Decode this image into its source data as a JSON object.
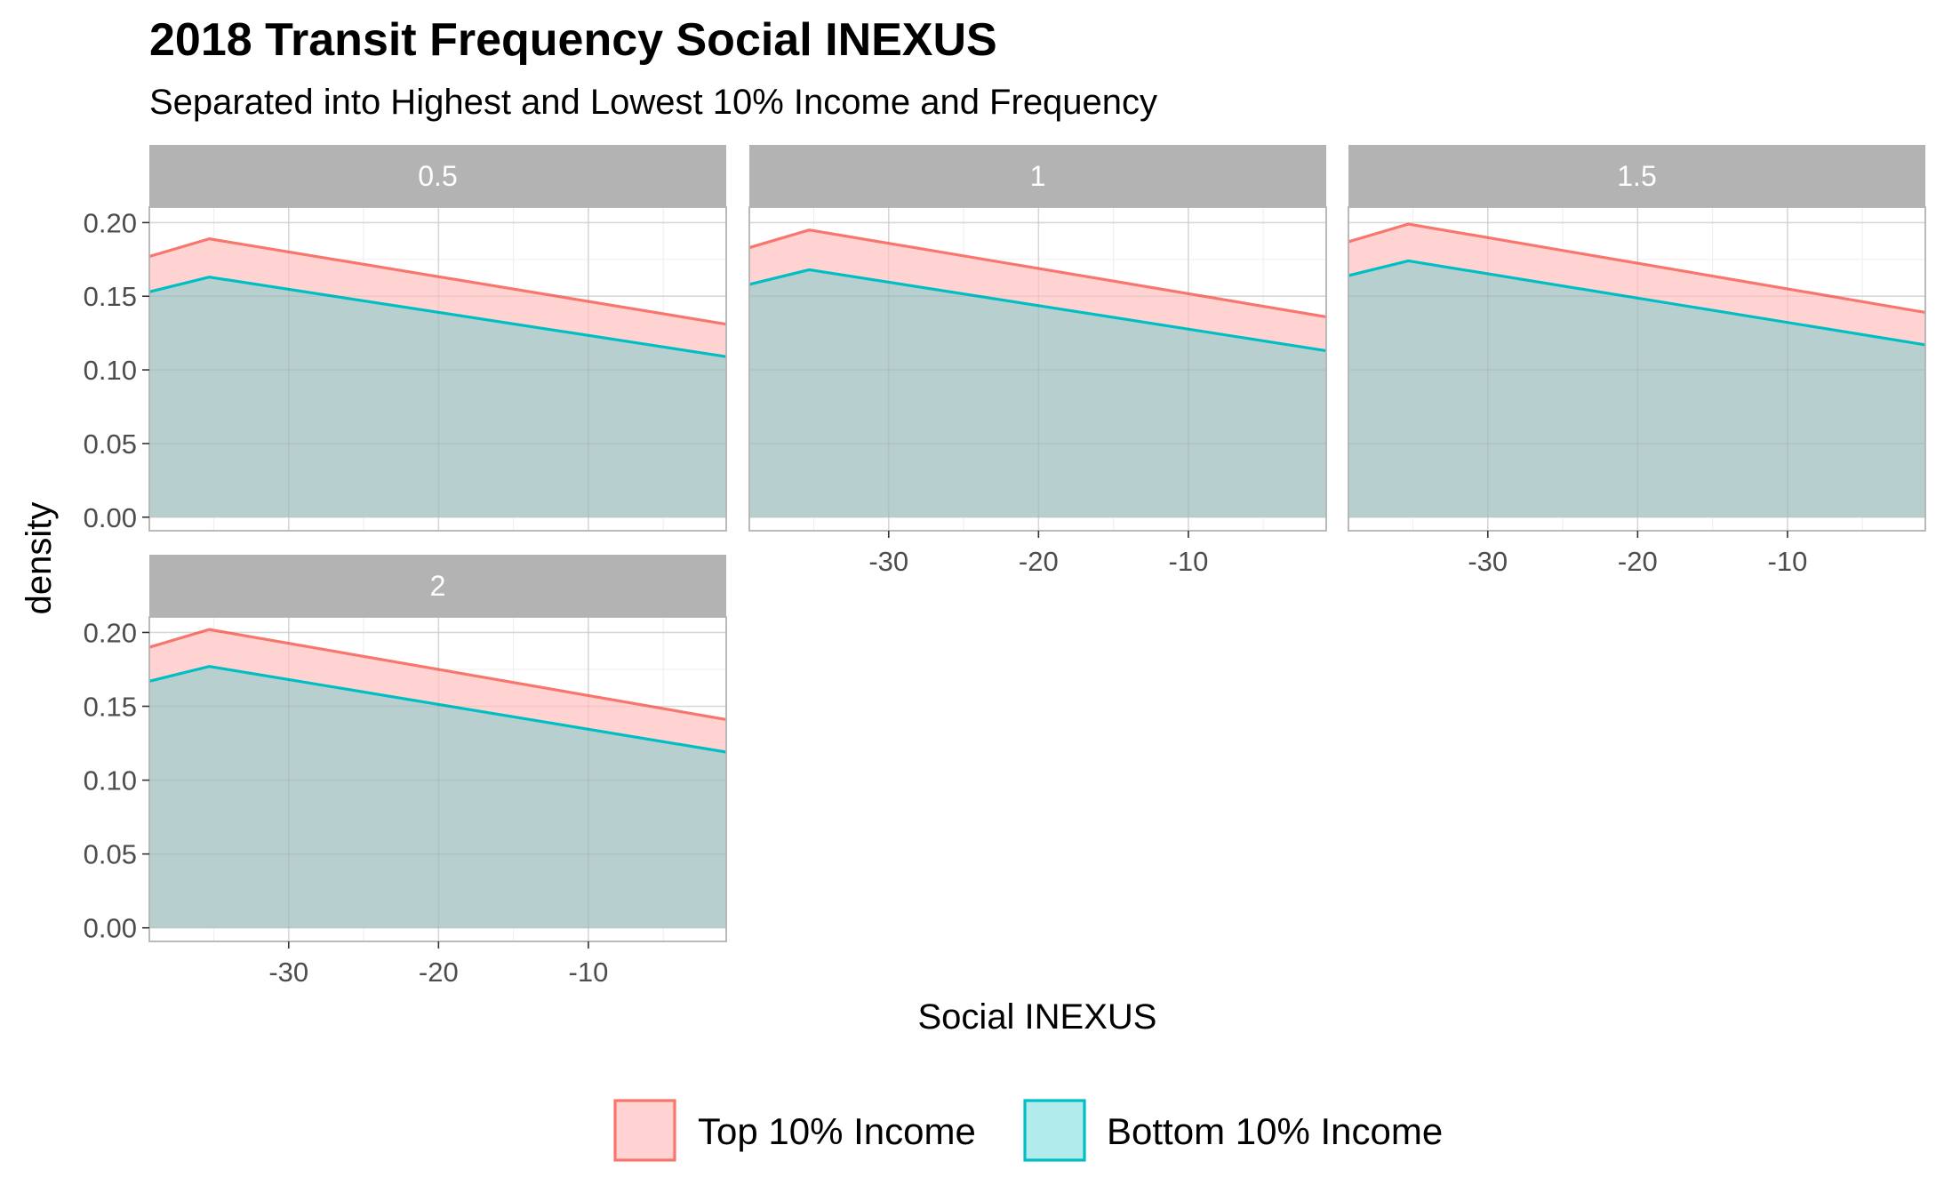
{
  "title": "2018 Transit Frequency Social INEXUS",
  "subtitle": "Separated into Highest and Lowest 10% Income and Frequency",
  "chart_data": {
    "type": "area",
    "title": "2018 Transit Frequency Social INEXUS",
    "subtitle": "Separated into Highest and Lowest 10% Income and Frequency",
    "xlabel": "Social INEXUS",
    "ylabel": "density",
    "xlim": [
      -39.3,
      -0.8
    ],
    "ylim": [
      -0.0092,
      0.2105
    ],
    "x_ticks": [
      -30,
      -20,
      -10
    ],
    "x_tick_labels": [
      "-30",
      "-20",
      "-10"
    ],
    "y_ticks": [
      0.0,
      0.05,
      0.1,
      0.15,
      0.2
    ],
    "y_tick_labels": [
      "0.00",
      "0.05",
      "0.10",
      "0.15",
      "0.20"
    ],
    "grid": true,
    "legend_position": "bottom",
    "series_colors": {
      "top": {
        "line": "#f8766d",
        "fill": "#ffd3d1"
      },
      "bottom": {
        "line": "#00bfc4",
        "fill": "#b3cfce"
      }
    },
    "facets": [
      {
        "label": "0.5",
        "series": [
          {
            "name": "Top 10% Income",
            "x": [
              -39.3,
              -35.3,
              -0.8
            ],
            "y": [
              0.177,
              0.189,
              0.131
            ]
          },
          {
            "name": "Bottom 10% Income",
            "x": [
              -39.3,
              -35.3,
              -0.8
            ],
            "y": [
              0.153,
              0.163,
              0.109
            ]
          }
        ]
      },
      {
        "label": "1",
        "series": [
          {
            "name": "Top 10% Income",
            "x": [
              -39.3,
              -35.3,
              -0.8
            ],
            "y": [
              0.183,
              0.195,
              0.136
            ]
          },
          {
            "name": "Bottom 10% Income",
            "x": [
              -39.3,
              -35.3,
              -0.8
            ],
            "y": [
              0.158,
              0.168,
              0.113
            ]
          }
        ]
      },
      {
        "label": "1.5",
        "series": [
          {
            "name": "Top 10% Income",
            "x": [
              -39.3,
              -35.3,
              -0.8
            ],
            "y": [
              0.187,
              0.199,
              0.139
            ]
          },
          {
            "name": "Bottom 10% Income",
            "x": [
              -39.3,
              -35.3,
              -0.8
            ],
            "y": [
              0.164,
              0.174,
              0.117
            ]
          }
        ]
      },
      {
        "label": "2",
        "series": [
          {
            "name": "Top 10% Income",
            "x": [
              -39.3,
              -35.3,
              -0.8
            ],
            "y": [
              0.19,
              0.202,
              0.141
            ]
          },
          {
            "name": "Bottom 10% Income",
            "x": [
              -39.3,
              -35.3,
              -0.8
            ],
            "y": [
              0.167,
              0.177,
              0.119
            ]
          }
        ]
      }
    ],
    "legend": [
      {
        "key": "top",
        "label": "Top 10% Income"
      },
      {
        "key": "bottom",
        "label": "Bottom 10% Income"
      }
    ]
  }
}
